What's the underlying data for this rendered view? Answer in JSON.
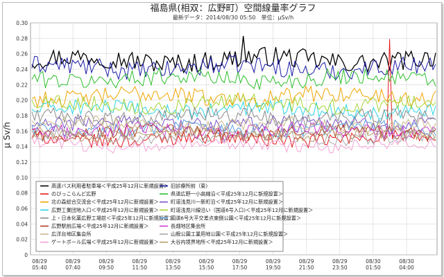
{
  "chart_data": {
    "type": "line",
    "title": "福島県(相双：広野町）空間線量率グラフ",
    "subtitle": "最新データ：2014/08/30 05:50　単位：μSv/h",
    "ylabel": "μ Sv/h",
    "xlabel": "",
    "ylim": [
      0,
      0.3
    ],
    "y_ticks": [
      "0",
      "0.02",
      "0.04",
      "0.06",
      "0.08",
      "0.10",
      "0.12",
      "0.14",
      "0.16",
      "0.18",
      "0.20",
      "0.22",
      "0.24",
      "0.26",
      "0.28",
      "0.30"
    ],
    "x_ticks": [
      {
        "date": "08/29",
        "time": "05:40"
      },
      {
        "date": "08/29",
        "time": "07:40"
      },
      {
        "date": "08/29",
        "time": "09:50"
      },
      {
        "date": "08/29",
        "time": "11:50"
      },
      {
        "date": "08/29",
        "time": "13:50"
      },
      {
        "date": "08/29",
        "time": "15:50"
      },
      {
        "date": "08/29",
        "time": "17:50"
      },
      {
        "date": "08/29",
        "time": "19:50"
      },
      {
        "date": "08/29",
        "time": "21:50"
      },
      {
        "date": "08/29",
        "time": "23:50"
      },
      {
        "date": "08/30",
        "time": "01:50"
      },
      {
        "date": "08/30",
        "time": "04:00"
      }
    ],
    "grid": true,
    "legend_position": "bottom-left inside",
    "series": [
      {
        "name": "高速バス利用者駐車場＜平成25年12月に新規設置＞",
        "color": "#000000",
        "base": 0.252,
        "amp": 0.013
      },
      {
        "name": "旧診療所前（東)",
        "color": "#1a1aa8",
        "base": 0.242,
        "amp": 0.012
      },
      {
        "name": "のびっこらんど広野",
        "color": "#e31a1c",
        "base": 0.15,
        "amp": 0.009
      },
      {
        "name": "県道広野一小高線沿＜平成25年12月に新規設置＞",
        "color": "#2cbf2c",
        "base": 0.228,
        "amp": 0.011
      },
      {
        "name": "北の森総合交流会＜平成25年12月に新規設置＞",
        "color": "#f0a500",
        "base": 0.205,
        "amp": 0.011
      },
      {
        "name": "町道浅見川一新町沿＜平成25年12月に新規設置＞",
        "color": "#7a52c7",
        "base": 0.17,
        "amp": 0.01
      },
      {
        "name": "広野工業団地入口＜平成25年12月に新規設置＞",
        "color": "#2ad4e6",
        "base": 0.188,
        "amp": 0.01
      },
      {
        "name": "町道浅見川線沿い（国道6号入口)＜平成25年12月に新規設置＞",
        "color": "#a6d435",
        "base": 0.195,
        "amp": 0.01
      },
      {
        "name": "上・日本化薬広野工場前＜平成25年12月に新規設置＞",
        "color": "#8a8a8a",
        "base": 0.178,
        "amp": 0.01
      },
      {
        "name": "国道6号大平交差点東側公園＜平成25年12月に新規設置＞",
        "color": "#5aa0dc",
        "base": 0.163,
        "amp": 0.009
      },
      {
        "name": "広野駅前広場＜平成25年12月に新規設置＞",
        "color": "#b03a1e",
        "base": 0.158,
        "amp": 0.009
      },
      {
        "name": "長畑地区集会所",
        "color": "#c93ad1",
        "base": 0.16,
        "amp": 0.01
      },
      {
        "name": "広洋台地区集会所",
        "color": "#c8b88a",
        "base": 0.168,
        "amp": 0.009
      },
      {
        "name": "山根公園工業用地公園＜平成25年12月に新規設置＞",
        "color": "#a8a8a8",
        "base": 0.152,
        "amp": 0.008
      },
      {
        "name": "ゲートボール広場＜平成25年12月に新規設置＞",
        "color": "#f2a3d6",
        "base": 0.142,
        "amp": 0.008
      },
      {
        "name": "大谷内境界地所＜平成25年12月に新規設置＞",
        "color": "#b89a6e",
        "base": 0.156,
        "amp": 0.008
      }
    ]
  }
}
